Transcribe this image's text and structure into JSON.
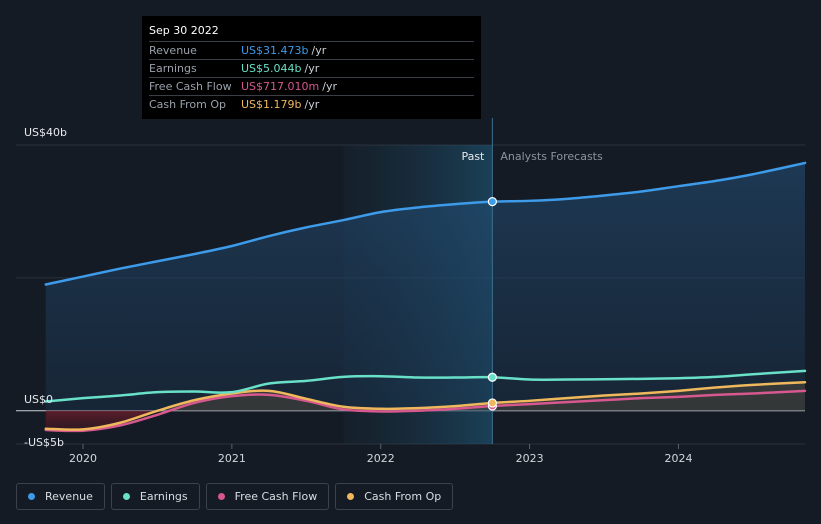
{
  "tooltip": {
    "date": "Sep 30 2022",
    "rows": [
      {
        "label": "Revenue",
        "value": "US$31.473b",
        "unit": "/yr",
        "color": "#3d9be9"
      },
      {
        "label": "Earnings",
        "value": "US$5.044b",
        "unit": "/yr",
        "color": "#69e0c8"
      },
      {
        "label": "Free Cash Flow",
        "value": "US$717.010m",
        "unit": "/yr",
        "color": "#d6588f"
      },
      {
        "label": "Cash From Op",
        "value": "US$1.179b",
        "unit": "/yr",
        "color": "#f0b85c"
      }
    ]
  },
  "legend": [
    {
      "label": "Revenue",
      "color": "#3d9be9"
    },
    {
      "label": "Earnings",
      "color": "#69e0c8"
    },
    {
      "label": "Free Cash Flow",
      "color": "#d6588f"
    },
    {
      "label": "Cash From Op",
      "color": "#f0b85c"
    }
  ],
  "chart_data": {
    "type": "line",
    "y_tick_labels": [
      {
        "label": "US$40b",
        "value": 40
      },
      {
        "label": "US$0",
        "value": 0
      },
      {
        "label": "-US$5b",
        "value": -5
      }
    ],
    "x_tick_labels": [
      {
        "label": "2020",
        "value": 2020.0
      },
      {
        "label": "2021",
        "value": 2021.0
      },
      {
        "label": "2022",
        "value": 2022.0
      },
      {
        "label": "2023",
        "value": 2023.0
      },
      {
        "label": "2024",
        "value": 2024.0
      }
    ],
    "xlim": [
      2019.55,
      2024.85
    ],
    "ylim": [
      -5,
      40
    ],
    "divider_x": 2022.75,
    "past_band_start": 2021.75,
    "past_label": "Past",
    "forecast_label": "Analysts Forecasts",
    "grid": true,
    "legend_position": "bottom-left",
    "series": [
      {
        "name": "Revenue",
        "color": "#3d9be9",
        "fill": true,
        "points": [
          [
            2019.75,
            19.0
          ],
          [
            2020.0,
            20.2
          ],
          [
            2020.25,
            21.4
          ],
          [
            2020.5,
            22.5
          ],
          [
            2020.75,
            23.6
          ],
          [
            2021.0,
            24.8
          ],
          [
            2021.25,
            26.3
          ],
          [
            2021.5,
            27.6
          ],
          [
            2021.75,
            28.7
          ],
          [
            2022.0,
            29.9
          ],
          [
            2022.25,
            30.6
          ],
          [
            2022.5,
            31.1
          ],
          [
            2022.75,
            31.473
          ],
          [
            2023.0,
            31.6
          ],
          [
            2023.25,
            31.9
          ],
          [
            2023.5,
            32.4
          ],
          [
            2023.75,
            33.0
          ],
          [
            2024.0,
            33.8
          ],
          [
            2024.25,
            34.6
          ],
          [
            2024.5,
            35.6
          ],
          [
            2024.85,
            37.3
          ]
        ]
      },
      {
        "name": "Earnings",
        "color": "#69e0c8",
        "fill": false,
        "points": [
          [
            2019.75,
            1.4
          ],
          [
            2020.0,
            1.9
          ],
          [
            2020.25,
            2.3
          ],
          [
            2020.5,
            2.8
          ],
          [
            2020.75,
            2.9
          ],
          [
            2021.0,
            2.8
          ],
          [
            2021.25,
            4.1
          ],
          [
            2021.5,
            4.5
          ],
          [
            2021.75,
            5.1
          ],
          [
            2022.0,
            5.2
          ],
          [
            2022.25,
            5.0
          ],
          [
            2022.5,
            5.0
          ],
          [
            2022.75,
            5.044
          ],
          [
            2023.0,
            4.7
          ],
          [
            2023.25,
            4.7
          ],
          [
            2023.5,
            4.75
          ],
          [
            2023.75,
            4.8
          ],
          [
            2024.0,
            4.9
          ],
          [
            2024.25,
            5.1
          ],
          [
            2024.5,
            5.5
          ],
          [
            2024.85,
            6.0
          ]
        ]
      },
      {
        "name": "Free Cash Flow",
        "color": "#d6588f",
        "fill": false,
        "points": [
          [
            2019.75,
            -2.9
          ],
          [
            2020.0,
            -3.0
          ],
          [
            2020.25,
            -2.2
          ],
          [
            2020.5,
            -0.6
          ],
          [
            2020.75,
            1.2
          ],
          [
            2021.0,
            2.2
          ],
          [
            2021.25,
            2.4
          ],
          [
            2021.5,
            1.5
          ],
          [
            2021.75,
            0.2
          ],
          [
            2022.0,
            -0.1
          ],
          [
            2022.25,
            0.0
          ],
          [
            2022.5,
            0.3
          ],
          [
            2022.75,
            0.717
          ],
          [
            2023.0,
            1.0
          ],
          [
            2023.25,
            1.3
          ],
          [
            2023.5,
            1.6
          ],
          [
            2023.75,
            1.9
          ],
          [
            2024.0,
            2.1
          ],
          [
            2024.25,
            2.4
          ],
          [
            2024.5,
            2.6
          ],
          [
            2024.85,
            3.0
          ]
        ]
      },
      {
        "name": "Cash From Op",
        "color": "#f0b85c",
        "fill": false,
        "points": [
          [
            2019.75,
            -2.7
          ],
          [
            2020.0,
            -2.8
          ],
          [
            2020.25,
            -1.8
          ],
          [
            2020.5,
            0.0
          ],
          [
            2020.75,
            1.6
          ],
          [
            2021.0,
            2.6
          ],
          [
            2021.25,
            3.0
          ],
          [
            2021.5,
            1.8
          ],
          [
            2021.75,
            0.6
          ],
          [
            2022.0,
            0.3
          ],
          [
            2022.25,
            0.4
          ],
          [
            2022.5,
            0.7
          ],
          [
            2022.75,
            1.179
          ],
          [
            2023.0,
            1.5
          ],
          [
            2023.25,
            1.9
          ],
          [
            2023.5,
            2.3
          ],
          [
            2023.75,
            2.6
          ],
          [
            2024.0,
            3.0
          ],
          [
            2024.25,
            3.5
          ],
          [
            2024.5,
            3.9
          ],
          [
            2024.85,
            4.3
          ]
        ]
      }
    ]
  }
}
